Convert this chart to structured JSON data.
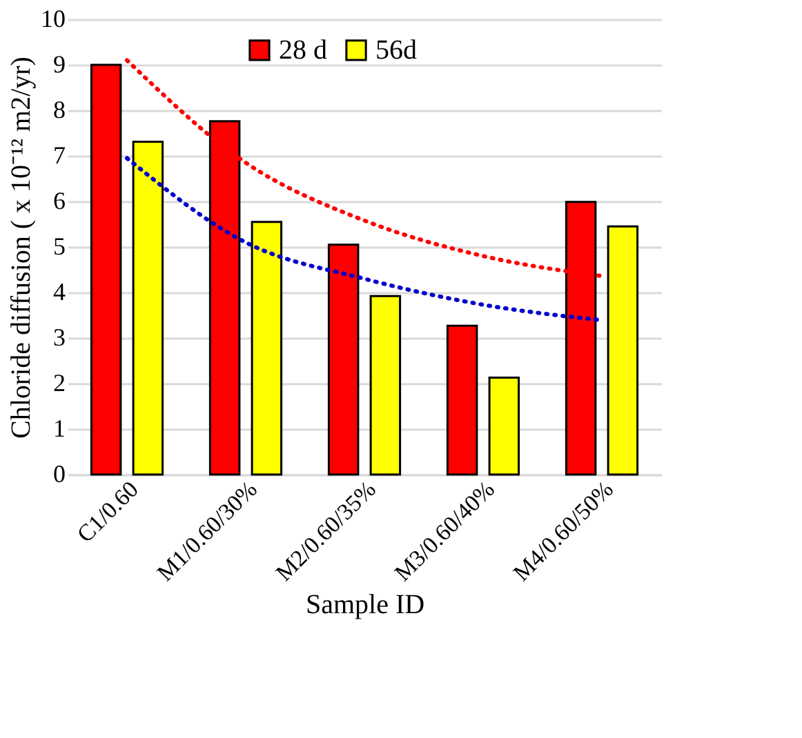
{
  "chart_data": {
    "type": "bar",
    "xlabel": "Sample ID",
    "ylabel": "Chloride diffusion ( x 10⁻¹² m2/yr)",
    "categories": [
      "C1/0.60",
      "M1/0.60/30%",
      "M2/0.60/35%",
      "M3/0.60/40%",
      "M4/0.60/50%"
    ],
    "series": [
      {
        "name": "28 d",
        "color": "#ff0000",
        "values": [
          9.0,
          7.76,
          5.05,
          3.27,
          5.99
        ]
      },
      {
        "name": "56d",
        "color": "#ffff00",
        "values": [
          7.31,
          5.55,
          3.92,
          2.13,
          5.45
        ]
      },
      {
        "type": "line",
        "color": "#ff0000",
        "line_style": "dotted",
        "values": [
          9.1,
          6.85,
          5.58,
          4.8,
          4.36
        ]
      },
      {
        "type": "line",
        "color": "#0000cc",
        "line_style": "dotted",
        "values": [
          6.95,
          5.1,
          4.3,
          3.73,
          3.39
        ]
      }
    ],
    "ylim": [
      0,
      10
    ],
    "yticks": [
      0,
      1,
      2,
      3,
      4,
      5,
      6,
      7,
      8,
      9,
      10
    ],
    "grid": "y",
    "legend": "top"
  }
}
